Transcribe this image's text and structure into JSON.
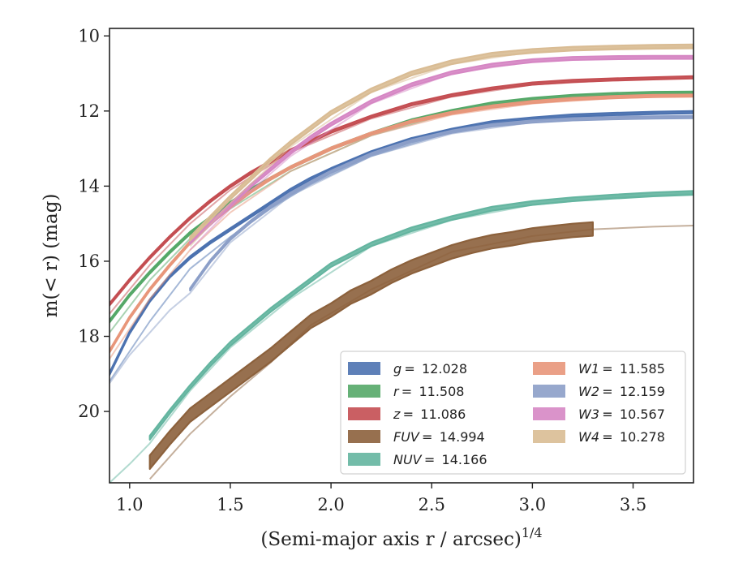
{
  "chart_data": {
    "type": "line",
    "xlabel": "(Semi-major axis r / arcsec)",
    "xlabel_exponent": "1/4",
    "ylabel": "m(< r) (mag)",
    "xlim": [
      0.9,
      3.8
    ],
    "ylim": [
      21.9,
      9.8
    ],
    "y_inverted": true,
    "xticks": [
      "1.0",
      "1.5",
      "2.0",
      "2.5",
      "3.0",
      "3.5"
    ],
    "yticks": [
      "10",
      "12",
      "14",
      "16",
      "18",
      "20"
    ],
    "legend_placement": "lower-right",
    "series": [
      {
        "name": "g = 12.028",
        "legend_var": "g",
        "legend_value": "= 12.028",
        "color": "#4c72b0",
        "band": 0.03,
        "points": [
          [
            0.9,
            19.0
          ],
          [
            1.0,
            17.9
          ],
          [
            1.1,
            17.05
          ],
          [
            1.2,
            16.4
          ],
          [
            1.3,
            15.9
          ],
          [
            1.4,
            15.5
          ],
          [
            1.5,
            15.15
          ],
          [
            1.6,
            14.8
          ],
          [
            1.7,
            14.45
          ],
          [
            1.8,
            14.1
          ],
          [
            1.9,
            13.8
          ],
          [
            2.0,
            13.55
          ],
          [
            2.2,
            13.1
          ],
          [
            2.4,
            12.75
          ],
          [
            2.6,
            12.5
          ],
          [
            2.8,
            12.3
          ],
          [
            3.0,
            12.2
          ],
          [
            3.2,
            12.12
          ],
          [
            3.4,
            12.08
          ],
          [
            3.6,
            12.05
          ],
          [
            3.8,
            12.03
          ]
        ],
        "faint": [
          [
            0.9,
            19.2
          ],
          [
            1.1,
            17.6
          ],
          [
            1.3,
            16.2
          ],
          [
            1.5,
            15.35
          ],
          [
            1.7,
            14.6
          ],
          [
            1.9,
            13.95
          ],
          [
            2.2,
            13.2
          ],
          [
            2.6,
            12.55
          ],
          [
            3.0,
            12.25
          ],
          [
            3.4,
            12.12
          ],
          [
            3.8,
            12.05
          ]
        ]
      },
      {
        "name": "r = 11.508",
        "legend_var": "r",
        "legend_value": "= 11.508",
        "color": "#55a868",
        "band": 0.03,
        "points": [
          [
            0.9,
            17.6
          ],
          [
            1.0,
            16.9
          ],
          [
            1.1,
            16.3
          ],
          [
            1.2,
            15.75
          ],
          [
            1.3,
            15.25
          ],
          [
            1.4,
            14.85
          ],
          [
            1.5,
            14.45
          ],
          [
            1.6,
            14.1
          ],
          [
            1.7,
            13.8
          ],
          [
            1.8,
            13.5
          ],
          [
            1.9,
            13.25
          ],
          [
            2.0,
            13.0
          ],
          [
            2.2,
            12.6
          ],
          [
            2.4,
            12.25
          ],
          [
            2.6,
            12.0
          ],
          [
            2.8,
            11.8
          ],
          [
            3.0,
            11.68
          ],
          [
            3.2,
            11.6
          ],
          [
            3.4,
            11.55
          ],
          [
            3.6,
            11.52
          ],
          [
            3.8,
            11.51
          ]
        ],
        "faint": [
          [
            0.9,
            17.9
          ],
          [
            1.1,
            16.5
          ],
          [
            1.3,
            15.4
          ],
          [
            1.5,
            14.6
          ],
          [
            1.8,
            13.6
          ],
          [
            2.2,
            12.65
          ],
          [
            2.6,
            12.05
          ],
          [
            3.0,
            11.72
          ],
          [
            3.4,
            11.58
          ],
          [
            3.8,
            11.52
          ]
        ]
      },
      {
        "name": "z = 11.086",
        "legend_var": "z",
        "legend_value": "= 11.086",
        "color": "#c44e52",
        "band": 0.03,
        "points": [
          [
            0.9,
            17.15
          ],
          [
            1.0,
            16.5
          ],
          [
            1.1,
            15.9
          ],
          [
            1.2,
            15.35
          ],
          [
            1.3,
            14.85
          ],
          [
            1.4,
            14.4
          ],
          [
            1.5,
            14.0
          ],
          [
            1.6,
            13.65
          ],
          [
            1.7,
            13.35
          ],
          [
            1.8,
            13.05
          ],
          [
            1.9,
            12.8
          ],
          [
            2.0,
            12.55
          ],
          [
            2.2,
            12.15
          ],
          [
            2.4,
            11.82
          ],
          [
            2.6,
            11.58
          ],
          [
            2.8,
            11.4
          ],
          [
            3.0,
            11.27
          ],
          [
            3.2,
            11.2
          ],
          [
            3.4,
            11.16
          ],
          [
            3.6,
            11.13
          ],
          [
            3.8,
            11.1
          ]
        ],
        "faint": [
          [
            0.9,
            17.4
          ],
          [
            1.1,
            16.1
          ],
          [
            1.3,
            15.0
          ],
          [
            1.5,
            14.1
          ],
          [
            1.8,
            13.1
          ],
          [
            2.2,
            12.2
          ],
          [
            2.6,
            11.62
          ],
          [
            3.0,
            11.3
          ],
          [
            3.4,
            11.18
          ],
          [
            3.8,
            11.12
          ]
        ]
      },
      {
        "name": "FUV = 14.994",
        "legend_var": "FUV",
        "legend_value": "= 14.994",
        "color": "#8c613c",
        "band": 0.18,
        "points": [
          [
            1.1,
            21.35
          ],
          [
            1.2,
            20.7
          ],
          [
            1.3,
            20.1
          ],
          [
            1.4,
            19.7
          ],
          [
            1.5,
            19.3
          ],
          [
            1.6,
            18.9
          ],
          [
            1.7,
            18.5
          ],
          [
            1.8,
            18.05
          ],
          [
            1.9,
            17.6
          ],
          [
            2.0,
            17.3
          ],
          [
            2.1,
            16.95
          ],
          [
            2.2,
            16.7
          ],
          [
            2.3,
            16.4
          ],
          [
            2.4,
            16.15
          ],
          [
            2.5,
            15.95
          ],
          [
            2.6,
            15.75
          ],
          [
            2.7,
            15.6
          ],
          [
            2.8,
            15.48
          ],
          [
            2.9,
            15.4
          ],
          [
            3.0,
            15.3
          ],
          [
            3.1,
            15.24
          ],
          [
            3.2,
            15.18
          ],
          [
            3.3,
            15.14
          ]
        ],
        "faint": [
          [
            1.1,
            21.8
          ],
          [
            1.3,
            20.6
          ],
          [
            1.5,
            19.6
          ],
          [
            1.7,
            18.7
          ],
          [
            1.9,
            17.7
          ],
          [
            2.2,
            16.75
          ],
          [
            2.6,
            15.75
          ],
          [
            3.0,
            15.33
          ],
          [
            3.3,
            15.15
          ],
          [
            3.6,
            15.08
          ],
          [
            3.8,
            15.05
          ]
        ]
      },
      {
        "name": "NUV = 14.166",
        "legend_var": "NUV",
        "legend_value": "= 14.166",
        "color": "#64b5a0",
        "band": 0.05,
        "points": [
          [
            1.1,
            20.7
          ],
          [
            1.2,
            20.0
          ],
          [
            1.3,
            19.35
          ],
          [
            1.4,
            18.75
          ],
          [
            1.5,
            18.2
          ],
          [
            1.6,
            17.75
          ],
          [
            1.7,
            17.3
          ],
          [
            1.8,
            16.9
          ],
          [
            1.9,
            16.5
          ],
          [
            2.0,
            16.1
          ],
          [
            2.2,
            15.55
          ],
          [
            2.4,
            15.15
          ],
          [
            2.6,
            14.85
          ],
          [
            2.8,
            14.6
          ],
          [
            3.0,
            14.45
          ],
          [
            3.2,
            14.35
          ],
          [
            3.4,
            14.28
          ],
          [
            3.6,
            14.22
          ],
          [
            3.8,
            14.18
          ]
        ],
        "faint": [
          [
            0.9,
            21.9
          ],
          [
            1.0,
            21.4
          ],
          [
            1.1,
            20.85
          ],
          [
            1.3,
            19.45
          ],
          [
            1.5,
            18.3
          ],
          [
            1.8,
            17.0
          ],
          [
            2.2,
            15.6
          ],
          [
            2.6,
            14.9
          ],
          [
            3.0,
            14.5
          ],
          [
            3.4,
            14.3
          ],
          [
            3.8,
            14.2
          ]
        ]
      },
      {
        "name": "W1 = 11.585",
        "legend_var": "W1",
        "legend_value": "= 11.585",
        "color": "#e8967a",
        "band": 0.03,
        "points": [
          [
            0.9,
            18.4
          ],
          [
            1.0,
            17.5
          ],
          [
            1.1,
            16.75
          ],
          [
            1.2,
            16.1
          ],
          [
            1.3,
            15.5
          ],
          [
            1.4,
            15.0
          ],
          [
            1.5,
            14.55
          ],
          [
            1.6,
            14.15
          ],
          [
            1.7,
            13.8
          ],
          [
            1.8,
            13.5
          ],
          [
            1.9,
            13.25
          ],
          [
            2.0,
            13.0
          ],
          [
            2.2,
            12.6
          ],
          [
            2.4,
            12.28
          ],
          [
            2.6,
            12.05
          ],
          [
            2.8,
            11.88
          ],
          [
            3.0,
            11.76
          ],
          [
            3.2,
            11.68
          ],
          [
            3.4,
            11.63
          ],
          [
            3.6,
            11.6
          ],
          [
            3.8,
            11.59
          ]
        ],
        "faint": [
          [
            0.9,
            18.6
          ],
          [
            1.1,
            17.0
          ],
          [
            1.3,
            15.7
          ],
          [
            1.5,
            14.7
          ],
          [
            1.8,
            13.6
          ],
          [
            2.2,
            12.65
          ],
          [
            2.6,
            12.1
          ],
          [
            3.0,
            11.8
          ],
          [
            3.4,
            11.66
          ],
          [
            3.8,
            11.6
          ]
        ]
      },
      {
        "name": "W2 = 12.159",
        "legend_var": "W2",
        "legend_value": "= 12.159",
        "color": "#8c9fc8",
        "band": 0.03,
        "points": [
          [
            1.3,
            16.75
          ],
          [
            1.4,
            16.0
          ],
          [
            1.5,
            15.4
          ],
          [
            1.6,
            14.95
          ],
          [
            1.7,
            14.55
          ],
          [
            1.8,
            14.2
          ],
          [
            1.9,
            13.9
          ],
          [
            2.0,
            13.62
          ],
          [
            2.2,
            13.15
          ],
          [
            2.4,
            12.8
          ],
          [
            2.6,
            12.55
          ],
          [
            2.8,
            12.38
          ],
          [
            3.0,
            12.28
          ],
          [
            3.2,
            12.22
          ],
          [
            3.4,
            12.19
          ],
          [
            3.6,
            12.17
          ],
          [
            3.8,
            12.16
          ]
        ],
        "faint": [
          [
            0.9,
            19.25
          ],
          [
            1.0,
            18.5
          ],
          [
            1.1,
            17.9
          ],
          [
            1.2,
            17.3
          ],
          [
            1.3,
            16.85
          ],
          [
            1.5,
            15.5
          ],
          [
            1.8,
            14.25
          ],
          [
            2.2,
            13.2
          ],
          [
            2.6,
            12.6
          ],
          [
            3.0,
            12.3
          ],
          [
            3.4,
            12.2
          ],
          [
            3.8,
            12.16
          ]
        ]
      },
      {
        "name": "W3 = 10.567",
        "legend_var": "W3",
        "legend_value": "= 10.567",
        "color": "#d687c4",
        "band": 0.04,
        "points": [
          [
            1.3,
            15.5
          ],
          [
            1.4,
            15.0
          ],
          [
            1.5,
            14.5
          ],
          [
            1.6,
            14.0
          ],
          [
            1.7,
            13.55
          ],
          [
            1.8,
            13.1
          ],
          [
            1.9,
            12.7
          ],
          [
            2.0,
            12.35
          ],
          [
            2.2,
            11.75
          ],
          [
            2.4,
            11.3
          ],
          [
            2.6,
            10.98
          ],
          [
            2.8,
            10.78
          ],
          [
            3.0,
            10.66
          ],
          [
            3.2,
            10.6
          ],
          [
            3.4,
            10.58
          ],
          [
            3.6,
            10.57
          ],
          [
            3.8,
            10.57
          ]
        ],
        "faint": [
          [
            1.3,
            15.7
          ],
          [
            1.5,
            14.6
          ],
          [
            1.8,
            13.2
          ],
          [
            2.2,
            11.8
          ],
          [
            2.6,
            11.0
          ],
          [
            3.0,
            10.68
          ],
          [
            3.4,
            10.59
          ],
          [
            3.8,
            10.57
          ]
        ]
      },
      {
        "name": "W4 = 10.278",
        "legend_var": "W4",
        "legend_value": "= 10.278",
        "color": "#d9bc94",
        "band": 0.05,
        "points": [
          [
            1.3,
            15.4
          ],
          [
            1.4,
            14.85
          ],
          [
            1.5,
            14.3
          ],
          [
            1.6,
            13.8
          ],
          [
            1.7,
            13.3
          ],
          [
            1.8,
            12.85
          ],
          [
            1.9,
            12.45
          ],
          [
            2.0,
            12.05
          ],
          [
            2.2,
            11.45
          ],
          [
            2.4,
            11.0
          ],
          [
            2.6,
            10.7
          ],
          [
            2.8,
            10.5
          ],
          [
            3.0,
            10.4
          ],
          [
            3.2,
            10.34
          ],
          [
            3.4,
            10.31
          ],
          [
            3.6,
            10.29
          ],
          [
            3.8,
            10.28
          ]
        ],
        "faint": [
          [
            1.3,
            15.6
          ],
          [
            1.5,
            14.45
          ],
          [
            1.8,
            12.95
          ],
          [
            2.2,
            11.5
          ],
          [
            2.6,
            10.75
          ],
          [
            3.0,
            10.42
          ],
          [
            3.4,
            10.32
          ],
          [
            3.8,
            10.29
          ]
        ]
      }
    ]
  }
}
